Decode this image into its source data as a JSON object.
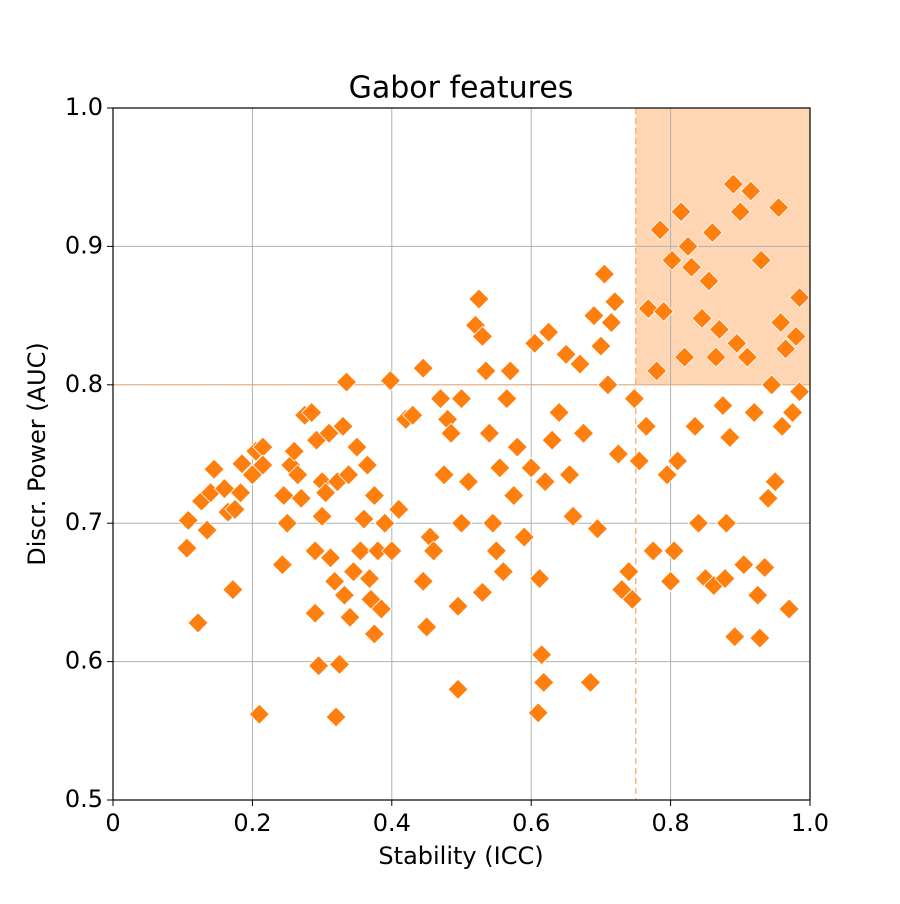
{
  "chart_data": {
    "type": "scatter",
    "title": "Gabor features",
    "x_label": "Stability (ICC)",
    "y_label": "Discr. Power (AUC)",
    "color": "#ff7f0e",
    "grid": true,
    "x_threshold": 0.75,
    "y_threshold": 0.8,
    "threshold_color": "#ffb47a",
    "region_color": "#ffd6b3",
    "xlim": [
      0,
      1
    ],
    "ylim": [
      0.5,
      1
    ],
    "xticks": [
      0,
      0.2,
      0.4,
      0.6,
      0.8,
      {
        "value": 1,
        "label": "1.0"
      }
    ],
    "yticks": [
      0.5,
      0.6,
      0.7,
      0.8,
      0.9,
      {
        "value": 1,
        "label": "1.0"
      }
    ],
    "x": [
      0.106,
      0.108,
      0.122,
      0.127,
      0.135,
      0.14,
      0.145,
      0.16,
      0.165,
      0.172,
      0.175,
      0.183,
      0.185,
      0.2,
      0.205,
      0.21,
      0.215,
      0.215,
      0.243,
      0.245,
      0.25,
      0.255,
      0.26,
      0.265,
      0.27,
      0.275,
      0.285,
      0.29,
      0.29,
      0.292,
      0.295,
      0.3,
      0.3,
      0.305,
      0.31,
      0.312,
      0.318,
      0.32,
      0.322,
      0.325,
      0.33,
      0.332,
      0.335,
      0.338,
      0.34,
      0.345,
      0.35,
      0.355,
      0.36,
      0.365,
      0.368,
      0.37,
      0.375,
      0.375,
      0.38,
      0.385,
      0.39,
      0.398,
      0.4,
      0.41,
      0.42,
      0.43,
      0.445,
      0.445,
      0.45,
      0.455,
      0.46,
      0.47,
      0.475,
      0.48,
      0.485,
      0.495,
      0.495,
      0.5,
      0.5,
      0.51,
      0.52,
      0.525,
      0.53,
      0.53,
      0.535,
      0.54,
      0.545,
      0.55,
      0.555,
      0.56,
      0.565,
      0.57,
      0.575,
      0.58,
      0.59,
      0.6,
      0.605,
      0.61,
      0.612,
      0.615,
      0.618,
      0.62,
      0.625,
      0.63,
      0.64,
      0.65,
      0.655,
      0.66,
      0.67,
      0.675,
      0.685,
      0.69,
      0.695,
      0.7,
      0.705,
      0.71,
      0.715,
      0.72,
      0.725,
      0.73,
      0.74,
      0.745,
      0.748,
      0.755,
      0.765,
      0.768,
      0.775,
      0.78,
      0.785,
      0.79,
      0.795,
      0.8,
      0.802,
      0.805,
      0.81,
      0.815,
      0.82,
      0.825,
      0.83,
      0.835,
      0.84,
      0.845,
      0.85,
      0.855,
      0.86,
      0.862,
      0.865,
      0.87,
      0.875,
      0.878,
      0.88,
      0.885,
      0.89,
      0.892,
      0.895,
      0.9,
      0.905,
      0.91,
      0.915,
      0.92,
      0.925,
      0.928,
      0.93,
      0.935,
      0.94,
      0.945,
      0.95,
      0.955,
      0.958,
      0.96,
      0.965,
      0.97,
      0.975,
      0.98,
      0.985,
      0.985
    ],
    "values": [
      0.682,
      0.702,
      0.628,
      0.716,
      0.695,
      0.722,
      0.739,
      0.725,
      0.708,
      0.652,
      0.71,
      0.722,
      0.743,
      0.735,
      0.752,
      0.562,
      0.755,
      0.742,
      0.67,
      0.72,
      0.7,
      0.742,
      0.752,
      0.735,
      0.718,
      0.778,
      0.78,
      0.635,
      0.68,
      0.76,
      0.597,
      0.73,
      0.705,
      0.722,
      0.765,
      0.675,
      0.658,
      0.56,
      0.73,
      0.598,
      0.77,
      0.648,
      0.802,
      0.735,
      0.632,
      0.665,
      0.755,
      0.68,
      0.703,
      0.742,
      0.66,
      0.645,
      0.62,
      0.72,
      0.68,
      0.638,
      0.7,
      0.803,
      0.68,
      0.71,
      0.775,
      0.778,
      0.812,
      0.658,
      0.625,
      0.69,
      0.68,
      0.79,
      0.735,
      0.775,
      0.765,
      0.58,
      0.64,
      0.7,
      0.79,
      0.73,
      0.843,
      0.862,
      0.835,
      0.65,
      0.81,
      0.765,
      0.7,
      0.68,
      0.74,
      0.665,
      0.79,
      0.81,
      0.72,
      0.755,
      0.69,
      0.74,
      0.83,
      0.563,
      0.66,
      0.605,
      0.585,
      0.73,
      0.838,
      0.76,
      0.78,
      0.822,
      0.735,
      0.705,
      0.815,
      0.765,
      0.585,
      0.85,
      0.696,
      0.828,
      0.88,
      0.8,
      0.845,
      0.86,
      0.75,
      0.652,
      0.665,
      0.645,
      0.79,
      0.745,
      0.77,
      0.855,
      0.68,
      0.81,
      0.912,
      0.853,
      0.735,
      0.658,
      0.89,
      0.68,
      0.745,
      0.925,
      0.82,
      0.9,
      0.885,
      0.77,
      0.7,
      0.848,
      0.66,
      0.875,
      0.91,
      0.655,
      0.82,
      0.84,
      0.785,
      0.66,
      0.7,
      0.762,
      0.945,
      0.618,
      0.83,
      0.925,
      0.67,
      0.82,
      0.94,
      0.78,
      0.648,
      0.617,
      0.89,
      0.668,
      0.718,
      0.8,
      0.73,
      0.928,
      0.845,
      0.77,
      0.826,
      0.638,
      0.78,
      0.835,
      0.863,
      0.795
    ]
  }
}
